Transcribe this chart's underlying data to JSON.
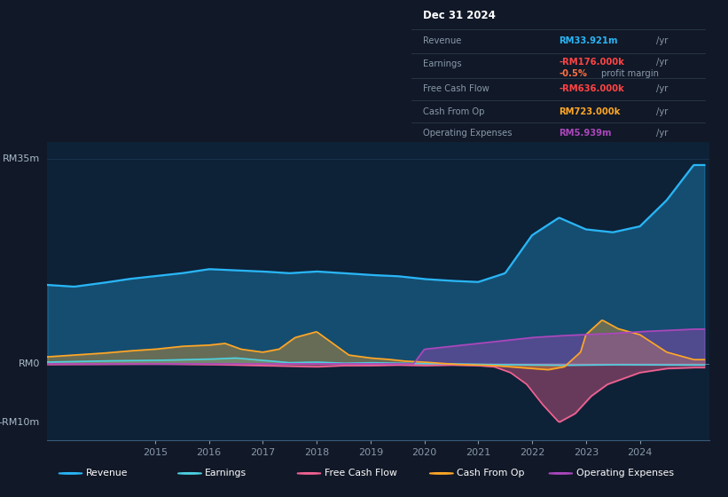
{
  "bg_color": "#111827",
  "chart_bg": "#0d2137",
  "title": "Dec 31 2024",
  "ylabel_top": "RM35m",
  "ylabel_mid": "RM0",
  "ylabel_bot": "-RM10m",
  "x_labels": [
    "2015",
    "2016",
    "2017",
    "2018",
    "2019",
    "2020",
    "2021",
    "2022",
    "2023",
    "2024"
  ],
  "x_ticks": [
    2015,
    2016,
    2017,
    2018,
    2019,
    2020,
    2021,
    2022,
    2023,
    2024
  ],
  "colors": {
    "revenue": "#29b6f6",
    "earnings": "#4dd0e1",
    "free_cash_flow": "#f06292",
    "cash_from_op": "#ffa726",
    "op_expenses": "#ab47bc"
  },
  "revenue_x": [
    2013.0,
    2013.5,
    2014.0,
    2014.5,
    2015.0,
    2015.5,
    2016.0,
    2016.5,
    2017.0,
    2017.5,
    2018.0,
    2018.5,
    2019.0,
    2019.5,
    2020.0,
    2020.5,
    2021.0,
    2021.5,
    2022.0,
    2022.5,
    2023.0,
    2023.5,
    2024.0,
    2024.5,
    2025.0
  ],
  "revenue_y": [
    13.5,
    13.2,
    13.8,
    14.5,
    15.0,
    15.5,
    16.2,
    16.0,
    15.8,
    15.5,
    15.8,
    15.5,
    15.2,
    15.0,
    14.5,
    14.2,
    14.0,
    15.5,
    22.0,
    25.0,
    23.0,
    22.5,
    23.5,
    28.0,
    34.0
  ],
  "earnings_x": [
    2013.0,
    2014.0,
    2015.0,
    2016.0,
    2016.5,
    2017.0,
    2017.5,
    2018.0,
    2018.5,
    2019.0,
    2019.5,
    2020.0,
    2020.5,
    2021.0,
    2021.5,
    2022.0,
    2022.5,
    2023.0,
    2023.5,
    2024.0,
    2025.0
  ],
  "earnings_y": [
    0.3,
    0.5,
    0.6,
    0.8,
    1.0,
    0.6,
    0.2,
    0.3,
    0.1,
    0.2,
    0.1,
    0.05,
    0.0,
    -0.1,
    -0.15,
    -0.2,
    -0.25,
    -0.2,
    -0.15,
    -0.176,
    -0.2
  ],
  "fcf_x": [
    2013.0,
    2014.0,
    2015.0,
    2016.0,
    2016.5,
    2017.0,
    2017.5,
    2018.0,
    2018.5,
    2019.0,
    2019.5,
    2020.0,
    2020.5,
    2021.0,
    2021.3,
    2021.6,
    2021.9,
    2022.2,
    2022.5,
    2022.8,
    2023.1,
    2023.4,
    2023.7,
    2024.0,
    2024.5,
    2025.0
  ],
  "fcf_y": [
    -0.1,
    -0.05,
    0.0,
    -0.1,
    -0.2,
    -0.3,
    -0.4,
    -0.5,
    -0.3,
    -0.3,
    -0.2,
    -0.3,
    -0.2,
    -0.3,
    -0.5,
    -1.5,
    -3.5,
    -7.0,
    -10.0,
    -8.5,
    -5.5,
    -3.5,
    -2.5,
    -1.5,
    -0.8,
    -0.636
  ],
  "cop_x": [
    2013.0,
    2013.5,
    2014.0,
    2014.5,
    2015.0,
    2015.5,
    2016.0,
    2016.3,
    2016.6,
    2017.0,
    2017.3,
    2017.6,
    2018.0,
    2018.3,
    2018.6,
    2019.0,
    2019.3,
    2019.6,
    2020.0,
    2020.3,
    2020.6,
    2021.0,
    2021.3,
    2021.6,
    2022.0,
    2022.3,
    2022.6,
    2022.9,
    2023.0,
    2023.3,
    2023.6,
    2024.0,
    2024.5,
    2025.0
  ],
  "cop_y": [
    1.2,
    1.5,
    1.8,
    2.2,
    2.5,
    3.0,
    3.2,
    3.5,
    2.5,
    2.0,
    2.5,
    4.5,
    5.5,
    3.5,
    1.5,
    1.0,
    0.8,
    0.5,
    0.3,
    0.1,
    -0.1,
    -0.2,
    -0.3,
    -0.5,
    -0.8,
    -1.0,
    -0.5,
    2.0,
    5.0,
    7.5,
    6.0,
    5.0,
    2.0,
    0.723
  ],
  "opex_x": [
    2013.0,
    2019.8,
    2020.0,
    2020.5,
    2021.0,
    2021.5,
    2022.0,
    2022.5,
    2023.0,
    2023.5,
    2024.0,
    2025.0
  ],
  "opex_y": [
    0.0,
    0.0,
    2.5,
    3.0,
    3.5,
    4.0,
    4.5,
    4.8,
    5.0,
    5.2,
    5.5,
    5.939
  ],
  "legend": [
    {
      "label": "Revenue",
      "color": "#29b6f6"
    },
    {
      "label": "Earnings",
      "color": "#4dd0e1"
    },
    {
      "label": "Free Cash Flow",
      "color": "#f06292"
    },
    {
      "label": "Cash From Op",
      "color": "#ffa726"
    },
    {
      "label": "Operating Expenses",
      "color": "#ab47bc"
    }
  ]
}
